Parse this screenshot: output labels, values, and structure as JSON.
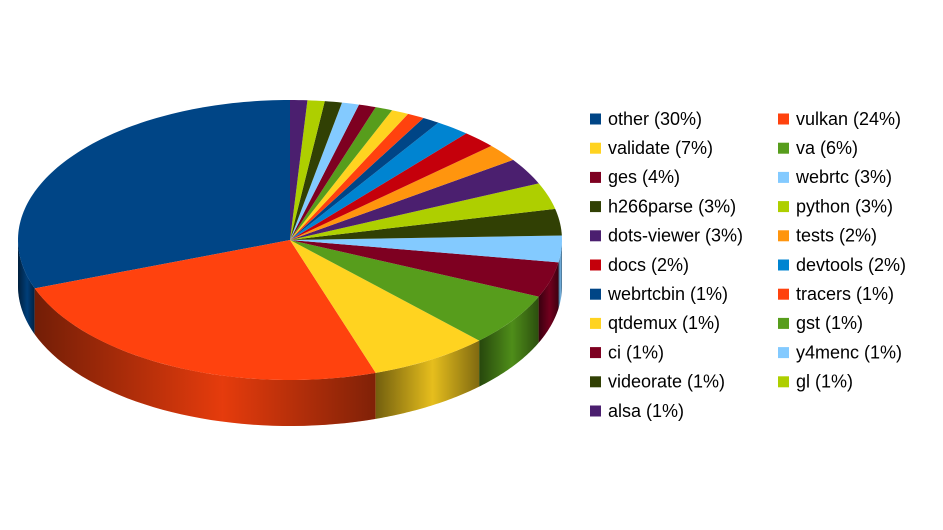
{
  "chart_data": {
    "type": "pie3d",
    "categories": [
      "other (30%)",
      "vulkan (24%)",
      "validate (7%)",
      "va (6%)",
      "ges (4%)",
      "webrtc (3%)",
      "h266parse (3%)",
      "python (3%)",
      "dots-viewer (3%)",
      "tests (2%)",
      "docs (2%)",
      "devtools (2%)",
      "webrtcbin (1%)",
      "tracers (1%)",
      "qtdemux (1%)",
      "gst (1%)",
      "ci (1%)",
      "y4menc (1%)",
      "videorate (1%)",
      "gl (1%)",
      "alsa (1%)"
    ],
    "values": [
      30,
      24,
      7,
      6,
      4,
      3,
      3,
      3,
      3,
      2,
      2,
      2,
      1,
      1,
      1,
      1,
      1,
      1,
      1,
      1,
      1
    ],
    "colors": [
      "#004586",
      "#ff420e",
      "#ffd320",
      "#579d1c",
      "#7e0021",
      "#83caff",
      "#314004",
      "#aecf00",
      "#4b1f6f",
      "#ff950e",
      "#c5000b",
      "#0084d1",
      "#004586",
      "#ff420e",
      "#ffd320",
      "#579d1c",
      "#7e0021",
      "#83caff",
      "#314004",
      "#aecf00",
      "#4b1f6f"
    ],
    "legend": "right"
  }
}
